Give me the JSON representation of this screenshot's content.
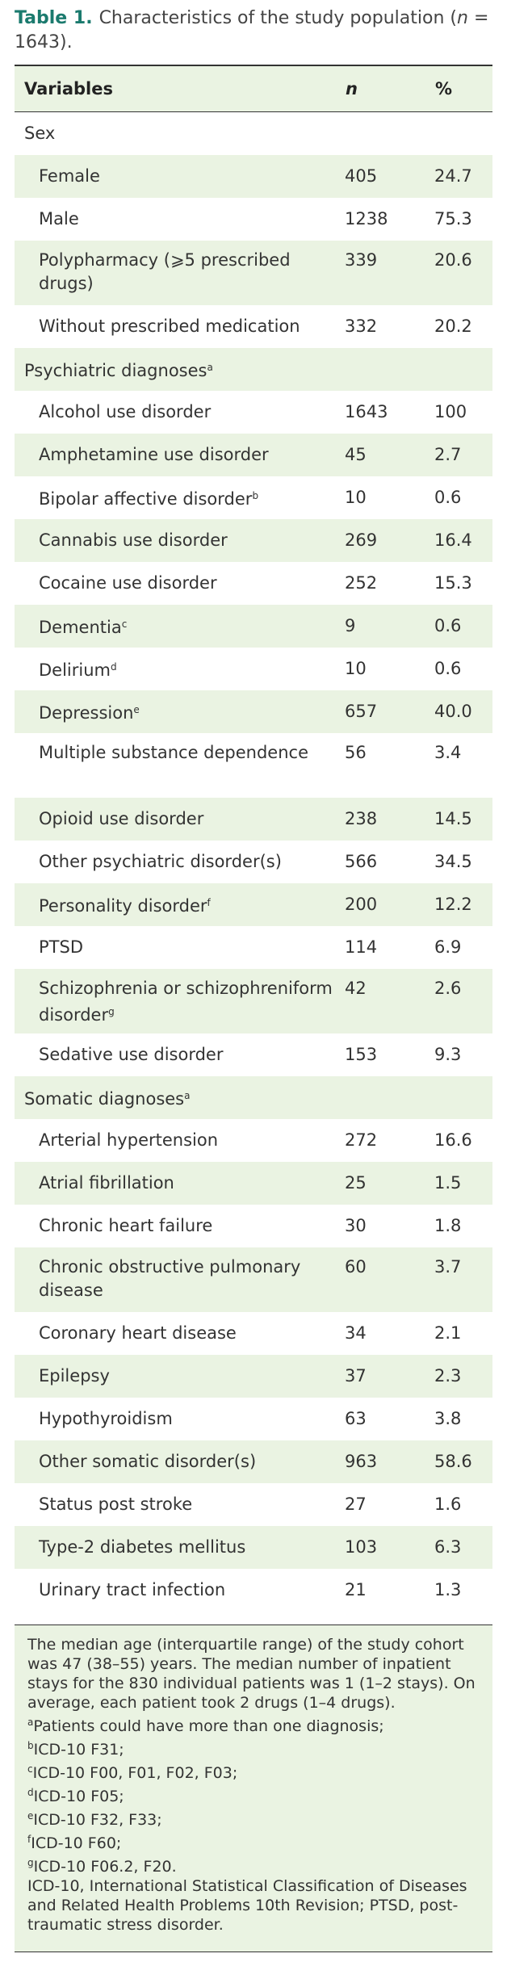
{
  "caption": {
    "label": "Table 1.",
    "parts": [
      "Characteristics of the study population (",
      "n",
      " = 1643)."
    ]
  },
  "table": {
    "header": [
      "Variables",
      "n",
      "%"
    ],
    "rows": [
      {
        "label": "Sex",
        "group": true
      },
      {
        "label": "Female",
        "n": "405",
        "pct": "24.7"
      },
      {
        "label": "Male",
        "n": "1238",
        "pct": "75.3"
      },
      {
        "label": "Polypharmacy (⩾5 prescribed drugs)",
        "n": "339",
        "pct": "20.6",
        "tall": true
      },
      {
        "label": "Without prescribed medication",
        "n": "332",
        "pct": "20.2"
      },
      {
        "label": "Psychiatric diagnoses",
        "sup": "a",
        "group": true
      },
      {
        "label": "Alcohol use disorder",
        "n": "1643",
        "pct": "100"
      },
      {
        "label": "Amphetamine use disorder",
        "n": "45",
        "pct": "2.7"
      },
      {
        "label": "Bipolar affective disorder",
        "sup": "b",
        "n": "10",
        "pct": "0.6"
      },
      {
        "label": "Cannabis use disorder",
        "n": "269",
        "pct": "16.4"
      },
      {
        "label": "Cocaine use disorder",
        "n": "252",
        "pct": "15.3"
      },
      {
        "label": "Dementia",
        "sup": "c",
        "n": "9",
        "pct": "0.6"
      },
      {
        "label": "Delirium",
        "sup": "d",
        "n": "10",
        "pct": "0.6"
      },
      {
        "label": "Depression",
        "sup": "e",
        "n": "657",
        "pct": "40.0"
      },
      {
        "label": "Multiple substance dependence",
        "n": "56",
        "pct": "3.4",
        "tall": true
      },
      {
        "label": "Opioid use disorder",
        "n": "238",
        "pct": "14.5"
      },
      {
        "label": "Other psychiatric disorder(s)",
        "n": "566",
        "pct": "34.5"
      },
      {
        "label": "Personality disorder",
        "sup": "f",
        "n": "200",
        "pct": "12.2"
      },
      {
        "label": "PTSD",
        "n": "114",
        "pct": "6.9"
      },
      {
        "label": "Schizophrenia or schizophreniform disorder",
        "sup": "g",
        "n": "42",
        "pct": "2.6",
        "tall": true
      },
      {
        "label": "Sedative use disorder",
        "n": "153",
        "pct": "9.3"
      },
      {
        "label": "Somatic diagnoses",
        "sup": "a",
        "group": true
      },
      {
        "label": "Arterial hypertension",
        "n": "272",
        "pct": "16.6"
      },
      {
        "label": "Atrial fibrillation",
        "n": "25",
        "pct": "1.5"
      },
      {
        "label": "Chronic heart failure",
        "n": "30",
        "pct": "1.8"
      },
      {
        "label": "Chronic obstructive pulmonary disease",
        "n": "60",
        "pct": "3.7",
        "tall": true
      },
      {
        "label": "Coronary heart disease",
        "n": "34",
        "pct": "2.1"
      },
      {
        "label": "Epilepsy",
        "n": "37",
        "pct": "2.3"
      },
      {
        "label": "Hypothyroidism",
        "n": "63",
        "pct": "3.8"
      },
      {
        "label": "Other somatic disorder(s)",
        "n": "963",
        "pct": "58.6"
      },
      {
        "label": "Status post stroke",
        "n": "27",
        "pct": "1.6"
      },
      {
        "label": "Type-2 diabetes mellitus",
        "n": "103",
        "pct": "6.3"
      },
      {
        "label": "Urinary tract infection",
        "n": "21",
        "pct": "1.3"
      }
    ]
  },
  "footnotes": [
    {
      "text": "The median age (interquartile range) of the study cohort was 47 (38–55) years. The median number of inpatient stays for the 830 individual patients was 1 (1–2 stays). On average, each patient took 2 drugs (1–4 drugs)."
    },
    {
      "sup": "a",
      "text": "Patients could have more than one diagnosis;"
    },
    {
      "sup": "b",
      "text": "ICD-10 F31;"
    },
    {
      "sup": "c",
      "text": "ICD-10 F00, F01, F02, F03;"
    },
    {
      "sup": "d",
      "text": "ICD-10 F05;"
    },
    {
      "sup": "e",
      "text": "ICD-10 F32, F33;"
    },
    {
      "sup": "f",
      "text": "ICD-10 F60;"
    },
    {
      "sup": "g",
      "text": "ICD-10 F06.2, F20."
    },
    {
      "text": "ICD-10, International Statistical Classification of Diseases and Related Health Problems 10th Revision; PTSD, post-traumatic stress disorder."
    }
  ]
}
